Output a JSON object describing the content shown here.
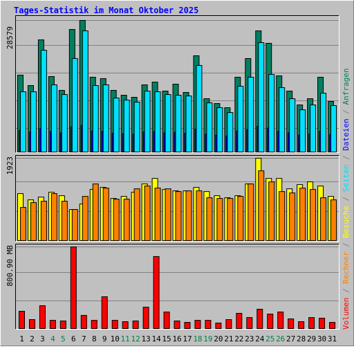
{
  "chart_data": {
    "type": "bar",
    "title": "Tages-Statistik im Monat Oktober 2025",
    "legend_separator": " / ",
    "categories": [
      "1",
      "2",
      "3",
      "4",
      "5",
      "6",
      "7",
      "8",
      "9",
      "10",
      "11",
      "12",
      "13",
      "14",
      "15",
      "16",
      "17",
      "18",
      "19",
      "20",
      "21",
      "22",
      "23",
      "24",
      "25",
      "26",
      "27",
      "28",
      "29",
      "30",
      "31"
    ],
    "category_colors": [
      "#000000",
      "#000000",
      "#000000",
      "#008040",
      "#008040",
      "#000000",
      "#000000",
      "#000000",
      "#000000",
      "#000000",
      "#008040",
      "#008040",
      "#000000",
      "#000000",
      "#000000",
      "#000000",
      "#000000",
      "#008040",
      "#008040",
      "#000000",
      "#000000",
      "#000000",
      "#000000",
      "#000000",
      "#008040",
      "#008040",
      "#000000",
      "#000000",
      "#000000",
      "#000000",
      "#000000"
    ],
    "panels": [
      {
        "ylim": [
          0,
          28579
        ],
        "yticks": [
          28579
        ],
        "series": [
          {
            "name": "Anfragen",
            "color": "#008060",
            "values": [
              16760,
              14510,
              24385,
              16456,
              13464,
              26629,
              28579,
              16306,
              16007,
              13464,
              12417,
              11968,
              14661,
              15259,
              13314,
              14810,
              13015,
              20944,
              11669,
              10622,
              9724,
              16306,
              20346,
              26330,
              23637,
              16606,
              13314,
              10322,
              11669,
              16306,
              11070
            ]
          },
          {
            "name": "Dateien",
            "color": "#0000ff",
            "values": [
              4800,
              4500,
              5200,
              4600,
              4300,
              5600,
              5900,
              4700,
              4600,
              4200,
              4100,
              4000,
              4500,
              4600,
              4300,
              4400,
              4200,
              5100,
              4000,
              3800,
              3600,
              4700,
              5000,
              5700,
              5300,
              4600,
              4300,
              3800,
              4000,
              4600,
              3900
            ]
          },
          {
            "name": "Seiten",
            "color": "#00e0ff",
            "values": [
              13165,
              13165,
              22141,
              14661,
              12566,
              20346,
              26330,
              14511,
              14661,
              11818,
              11370,
              10921,
              13314,
              13165,
              12566,
              12417,
              12267,
              18850,
              10771,
              9724,
              8677,
              14362,
              16306,
              23786,
              16905,
              14062,
              11669,
              9275,
              10322,
              12866,
              10173
            ]
          }
        ]
      },
      {
        "ylim": [
          0,
          1923
        ],
        "yticks": [
          1923
        ],
        "series": [
          {
            "name": "Besuche",
            "color": "#ffff00",
            "values": [
              1104,
              960,
              1024,
              1136,
              1056,
              736,
              864,
              1200,
              1248,
              992,
              1040,
              1136,
              1328,
              1456,
              1200,
              1168,
              1168,
              1248,
              1152,
              1056,
              1008,
              1056,
              1328,
              1923,
              1456,
              1456,
              1216,
              1312,
              1376,
              1280,
              1040
            ]
          },
          {
            "name": "Rechner",
            "color": "#ff8000",
            "values": [
              784,
              896,
              928,
              1104,
              928,
              736,
              1040,
              1328,
              1232,
              976,
              976,
              1216,
              1280,
              1232,
              1216,
              1152,
              1168,
              1168,
              1008,
              992,
              992,
              1040,
              1328,
              1632,
              1376,
              1152,
              1120,
              1232,
              1200,
              1008,
              960
            ]
          }
        ]
      },
      {
        "ylim": [
          0,
          800.9
        ],
        "yticks": [
          {
            "value": 800.9,
            "label": "800.90 MB"
          }
        ],
        "series": [
          {
            "name": "Volumen",
            "color": "#ff0000",
            "values": [
              175,
              94,
              229,
              87,
              81,
              800.9,
              135,
              87,
              316,
              87,
              74,
              81,
              215,
              707,
              168,
              81,
              67,
              87,
              87,
              61,
              94,
              155,
              114,
              195,
              148,
              168,
              101,
              74,
              114,
              108,
              67
            ]
          }
        ]
      }
    ]
  }
}
